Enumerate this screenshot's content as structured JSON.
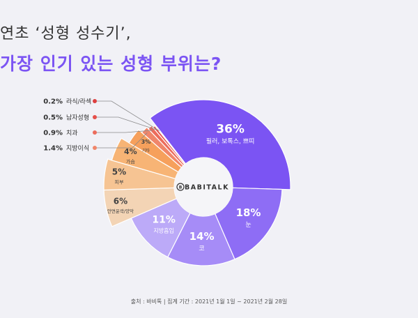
{
  "title_line1": "연초 ‘성형 성수기’,",
  "title_line2": "가장 인기 있는 성형 부위는?",
  "center_logo": "BABITALK",
  "source_note": "출처 : 바비톡  |  집계 기간 : 2021년 1월 1일 ~ 2021년 2월 28일",
  "colors": {
    "filler": "#7b54f3",
    "eye": "#8e6df5",
    "nose": "#a68cf7",
    "fat": "#bcaaf8",
    "contour": "#f3d4b5",
    "skin": "#f6c493",
    "breast": "#f7b475",
    "etc": "#f6a05c",
    "fat_transfer": "#f0866a",
    "dental": "#ec6c5c",
    "male": "#e5504a",
    "lasik": "#dd3f3f"
  },
  "chart_data": {
    "type": "pie",
    "donut": true,
    "slices": [
      {
        "key": "filler",
        "label": "필러, 보톡스, 쁘띠",
        "pct": "36%",
        "value": 36
      },
      {
        "key": "eye",
        "label": "눈",
        "pct": "18%",
        "value": 18
      },
      {
        "key": "nose",
        "label": "코",
        "pct": "14%",
        "value": 14
      },
      {
        "key": "fat",
        "label": "지방흡입",
        "pct": "11%",
        "value": 11
      },
      {
        "key": "contour",
        "label": "안면윤곽/양악",
        "pct": "6%",
        "value": 6
      },
      {
        "key": "skin",
        "label": "피부",
        "pct": "5%",
        "value": 5
      },
      {
        "key": "breast",
        "label": "가슴",
        "pct": "4%",
        "value": 4
      },
      {
        "key": "etc",
        "label": "기타",
        "pct": "3%",
        "value": 3
      },
      {
        "key": "fat_transfer",
        "label": "지방이식",
        "pct": "1.4%",
        "value": 1.4
      },
      {
        "key": "dental",
        "label": "치과",
        "pct": "0.9%",
        "value": 0.9
      },
      {
        "key": "male",
        "label": "남자성형",
        "pct": "0.5%",
        "value": 0.5
      },
      {
        "key": "lasik",
        "label": "라식/라섹",
        "pct": "0.2%",
        "value": 0.2
      }
    ]
  }
}
